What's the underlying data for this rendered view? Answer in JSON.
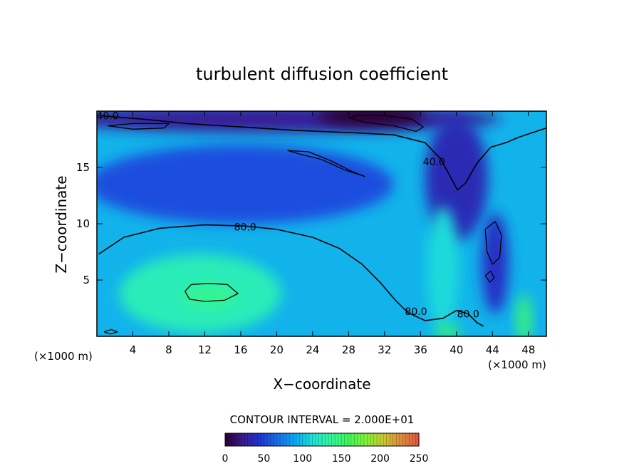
{
  "chart_data": {
    "type": "heatmap",
    "title": "turbulent diffusion coefficient",
    "xlabel": "X−coordinate",
    "ylabel": "Z−coordinate",
    "x_unit_left": "(×1000 m)",
    "x_unit_right": "(×1000 m)",
    "xlim": [
      0,
      50
    ],
    "ylim": [
      0,
      20
    ],
    "x_ticks": [
      4,
      8,
      12,
      16,
      20,
      24,
      28,
      32,
      36,
      40,
      44,
      48
    ],
    "y_ticks": [
      5,
      10,
      15
    ],
    "contour_interval_text": "CONTOUR INTERVAL = 2.000E+01",
    "contour_labels": [
      {
        "text": "40.0",
        "x": 1.2,
        "y": 19.6
      },
      {
        "text": "40.0",
        "x": 37.5,
        "y": 15.5
      },
      {
        "text": "80.0",
        "x": 16.5,
        "y": 9.7
      },
      {
        "text": "80.0",
        "x": 35.5,
        "y": 2.2
      },
      {
        "text": "80.0",
        "x": 41.3,
        "y": 2.0
      }
    ],
    "colorbar": {
      "min": 0,
      "max": 250,
      "ticks": [
        0,
        50,
        100,
        150,
        200,
        250
      ],
      "colors": [
        "#2a0033",
        "#3b1a8f",
        "#1f36d6",
        "#1570e8",
        "#0fa9f0",
        "#1fe3d6",
        "#35f59a",
        "#3ef75a",
        "#7ff03a",
        "#c9c830",
        "#e08a3c",
        "#e0563c"
      ]
    },
    "fields": [
      {
        "name": "background",
        "value": 95,
        "x": 25,
        "y": 10,
        "rx": 40,
        "ry": 30
      },
      {
        "name": "upper-low-zone",
        "value": 55,
        "x": 16,
        "y": 13.5,
        "rx": 17,
        "ry": 3.5
      },
      {
        "name": "top-band",
        "value": 25,
        "x": 20,
        "y": 19.3,
        "rx": 25,
        "ry": 1.2
      },
      {
        "name": "top-right-min",
        "value": 0,
        "x": 30.5,
        "y": 19.6,
        "rx": 6,
        "ry": 0.9
      },
      {
        "name": "lower-left-max",
        "value": 125,
        "x": 11.5,
        "y": 3.8,
        "rx": 9,
        "ry": 3.5
      },
      {
        "name": "lower-left-core",
        "value": 140,
        "x": 12.5,
        "y": 3.6,
        "rx": 3,
        "ry": 1.0
      },
      {
        "name": "right-plume-low",
        "value": 35,
        "x": 40,
        "y": 14,
        "rx": 3.5,
        "ry": 5.5
      },
      {
        "name": "right-pocket-low",
        "value": 40,
        "x": 44.3,
        "y": 6.5,
        "rx": 1.5,
        "ry": 4.5
      },
      {
        "name": "right-channel-high",
        "value": 110,
        "x": 38.5,
        "y": 6,
        "rx": 1.8,
        "ry": 5.5
      },
      {
        "name": "bottom-right-max",
        "value": 155,
        "x": 39,
        "y": 0.4,
        "rx": 1.5,
        "ry": 0.5
      },
      {
        "name": "far-right-max",
        "value": 150,
        "x": 47.5,
        "y": 1.5,
        "rx": 0.8,
        "ry": 2.2
      }
    ],
    "contours": [
      {
        "label": "40.0",
        "points": [
          [
            0.3,
            19.6
          ],
          [
            5,
            19.3
          ],
          [
            10,
            18.9
          ],
          [
            16,
            18.6
          ],
          [
            22,
            18.3
          ],
          [
            28,
            18.1
          ],
          [
            33,
            17.9
          ],
          [
            36.5,
            17.2
          ],
          [
            38.2,
            15.8
          ],
          [
            39.3,
            14.2
          ],
          [
            40.1,
            13.0
          ],
          [
            41.0,
            13.6
          ],
          [
            42.3,
            15.4
          ],
          [
            43.8,
            16.8
          ],
          [
            45.5,
            17.2
          ],
          [
            47,
            17.7
          ],
          [
            50,
            18.5
          ]
        ]
      },
      {
        "label": "80.0",
        "points": [
          [
            0.2,
            7.3
          ],
          [
            3,
            8.8
          ],
          [
            7,
            9.6
          ],
          [
            12,
            9.9
          ],
          [
            16.5,
            9.8
          ],
          [
            20,
            9.5
          ],
          [
            24,
            8.8
          ],
          [
            27,
            7.8
          ],
          [
            29.5,
            6.4
          ],
          [
            31.5,
            4.8
          ],
          [
            33.2,
            3.2
          ],
          [
            34.6,
            2.1
          ],
          [
            36.5,
            1.4
          ],
          [
            38.5,
            1.6
          ],
          [
            40,
            2.3
          ],
          [
            41.3,
            2.0
          ],
          [
            42.3,
            1.2
          ],
          [
            43,
            0.9
          ]
        ]
      },
      {
        "label": "",
        "points": [
          [
            28,
            19.4
          ],
          [
            30,
            19.0
          ],
          [
            33,
            18.7
          ],
          [
            35.5,
            18.2
          ],
          [
            36.3,
            18.6
          ],
          [
            35,
            19.3
          ],
          [
            32,
            19.6
          ],
          [
            29,
            19.6
          ],
          [
            28,
            19.4
          ]
        ]
      },
      {
        "label": "",
        "points": [
          [
            21.2,
            16.5
          ],
          [
            23.5,
            16.4
          ],
          [
            26,
            15.6
          ],
          [
            28.5,
            14.6
          ],
          [
            29.8,
            14.2
          ],
          [
            27.5,
            14.8
          ],
          [
            25,
            15.7
          ],
          [
            22.5,
            16.2
          ],
          [
            21.2,
            16.5
          ]
        ]
      },
      {
        "label": "",
        "points": [
          [
            9.8,
            4.0
          ],
          [
            10.5,
            4.6
          ],
          [
            12.5,
            4.7
          ],
          [
            14.5,
            4.6
          ],
          [
            15.7,
            3.8
          ],
          [
            14.2,
            3.2
          ],
          [
            12,
            3.1
          ],
          [
            10.3,
            3.3
          ],
          [
            9.8,
            4.0
          ]
        ]
      },
      {
        "label": "",
        "points": [
          [
            43.2,
            9.5
          ],
          [
            44.3,
            10.2
          ],
          [
            45,
            9.0
          ],
          [
            44.8,
            7.0
          ],
          [
            44.0,
            6.4
          ],
          [
            43.4,
            7.5
          ],
          [
            43.2,
            9.5
          ]
        ]
      },
      {
        "label": "",
        "points": [
          [
            43.2,
            5.4
          ],
          [
            43.8,
            5.8
          ],
          [
            44.2,
            5.2
          ],
          [
            43.7,
            4.8
          ],
          [
            43.2,
            5.4
          ]
        ]
      },
      {
        "label": "",
        "points": [
          [
            1.2,
            18.7
          ],
          [
            4,
            18.9
          ],
          [
            8,
            18.9
          ],
          [
            7.5,
            18.5
          ],
          [
            4,
            18.4
          ],
          [
            1.2,
            18.7
          ]
        ]
      },
      {
        "label": "",
        "points": [
          [
            0.8,
            0.4
          ],
          [
            1.6,
            0.6
          ],
          [
            2.3,
            0.4
          ],
          [
            1.5,
            0.2
          ],
          [
            0.8,
            0.4
          ]
        ]
      }
    ]
  }
}
